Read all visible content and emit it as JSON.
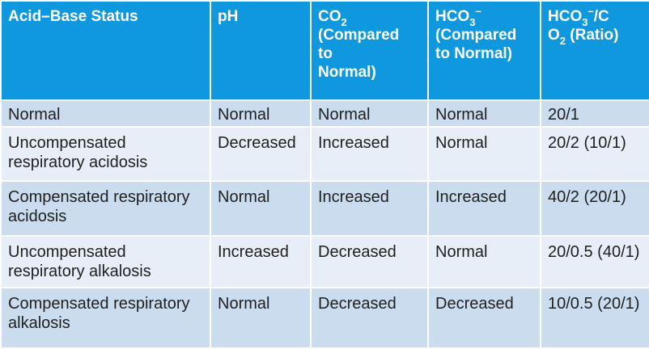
{
  "table": {
    "headers": {
      "status": "Acid–Base Status",
      "ph": "pH",
      "co2": {
        "base": "CO",
        "sub": "2",
        "line2": "(Compared",
        "line3": "to",
        "line4": "Normal)"
      },
      "hco3": {
        "base": "HCO",
        "sub": "3",
        "sup": "–",
        "line2": "(Compared",
        "line3": "to Normal)"
      },
      "ratio": {
        "part1": "HCO",
        "sub1": "3",
        "sup1": "–",
        "part2": "/C",
        "part3": "O",
        "sub2": "2",
        "part4": " (Ratio)"
      }
    },
    "rows": [
      {
        "status": "Normal",
        "ph": "Normal",
        "co2": "Normal",
        "hco3": "Normal",
        "ratio": "20/1"
      },
      {
        "status": "Uncompensated respiratory acidosis",
        "ph": "Decreased",
        "co2": "Increased",
        "hco3": "Normal",
        "ratio": "20/2 (10/1)"
      },
      {
        "status": "Compensated respiratory acidosis",
        "ph": "Normal",
        "co2": "Increased",
        "hco3": "Increased",
        "ratio": "40/2 (20/1)"
      },
      {
        "status": "Uncompensated respiratory alkalosis",
        "ph": "Increased",
        "co2": "Decreased",
        "hco3": "Normal",
        "ratio": "20/0.5 (40/1)"
      },
      {
        "status": "Compensated respiratory alkalosis",
        "ph": "Normal",
        "co2": "Decreased",
        "hco3": "Decreased",
        "ratio": "10/0.5 (20/1)"
      }
    ],
    "colors": {
      "header_bg": "#0f98dd",
      "row_dark": "#cadcee",
      "row_light": "#e8eef7"
    }
  }
}
